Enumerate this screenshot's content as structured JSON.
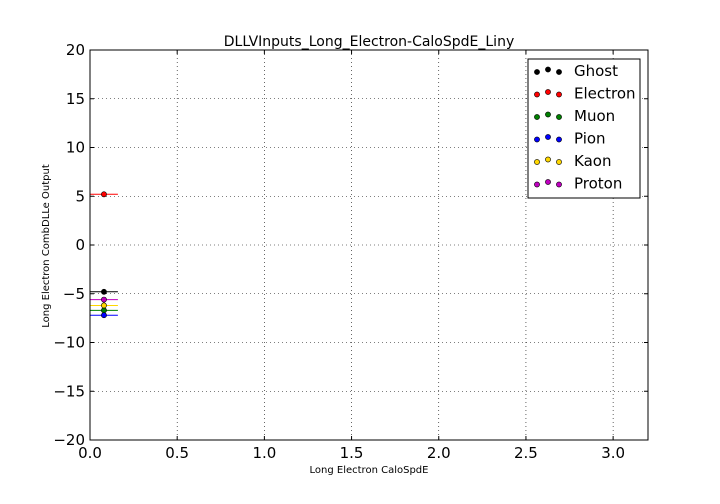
{
  "chart_data": {
    "type": "scatter",
    "title": "DLLVInputs_Long_Electron-CaloSpdE_Liny",
    "xlabel": "Long Electron CaloSpdE",
    "ylabel": "Long Electron CombDLLe Output",
    "xlim": [
      0.0,
      3.2
    ],
    "ylim": [
      -20,
      20
    ],
    "x_ticks": [
      0.0,
      0.5,
      1.0,
      1.5,
      2.0,
      2.5,
      3.0
    ],
    "x_tick_labels": [
      "0.0",
      "0.5",
      "1.0",
      "1.5",
      "2.0",
      "2.5",
      "3.0"
    ],
    "y_ticks": [
      -20,
      -15,
      -10,
      -5,
      0,
      5,
      10,
      15,
      20
    ],
    "y_tick_labels": [
      "−20",
      "−15",
      "−10",
      "−5",
      "0",
      "5",
      "10",
      "15",
      "20"
    ],
    "grid": true,
    "legend_position": "top-right",
    "series": [
      {
        "name": "Ghost",
        "color": "#000000",
        "points": [
          {
            "x": 0.08,
            "y": -4.8,
            "xerr": 0.08
          }
        ]
      },
      {
        "name": "Electron",
        "color": "#ff0000",
        "points": [
          {
            "x": 0.08,
            "y": 5.2,
            "xerr": 0.08
          }
        ]
      },
      {
        "name": "Muon",
        "color": "#008000",
        "points": [
          {
            "x": 0.08,
            "y": -6.7,
            "xerr": 0.08
          }
        ]
      },
      {
        "name": "Pion",
        "color": "#0000ff",
        "points": [
          {
            "x": 0.08,
            "y": -7.2,
            "xerr": 0.08
          }
        ]
      },
      {
        "name": "Kaon",
        "color": "#ffd700",
        "points": [
          {
            "x": 0.08,
            "y": -6.2,
            "xerr": 0.08
          }
        ]
      },
      {
        "name": "Proton",
        "color": "#bf00bf",
        "points": [
          {
            "x": 0.08,
            "y": -5.6,
            "xerr": 0.08
          }
        ]
      }
    ]
  }
}
